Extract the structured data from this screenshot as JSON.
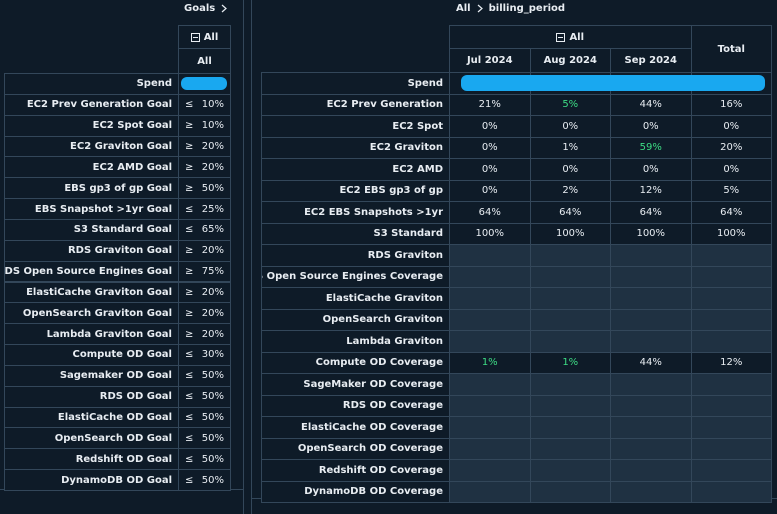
{
  "left": {
    "breadcrumb": "Goals",
    "column_group": "All",
    "column": "All",
    "spend_label": "Spend",
    "rows": [
      {
        "label": "EC2 Prev Generation Goal",
        "op": "≤",
        "value": "10%"
      },
      {
        "label": "EC2 Spot Goal",
        "op": "≥",
        "value": "10%"
      },
      {
        "label": "EC2 Graviton Goal",
        "op": "≥",
        "value": "20%"
      },
      {
        "label": "EC2 AMD Goal",
        "op": "≥",
        "value": "20%"
      },
      {
        "label": "EBS gp3 of gp Goal",
        "op": "≥",
        "value": "50%"
      },
      {
        "label": "EBS Snapshot >1yr Goal",
        "op": "≤",
        "value": "25%"
      },
      {
        "label": "S3 Standard Goal",
        "op": "≤",
        "value": "65%"
      },
      {
        "label": "RDS Graviton Goal",
        "op": "≥",
        "value": "20%"
      },
      {
        "label": "RDS Open Source Engines Goal",
        "op": "≥",
        "value": "75%"
      },
      {
        "label": "ElastiCache Graviton Goal",
        "op": "≥",
        "value": "20%"
      },
      {
        "label": "OpenSearch Graviton Goal",
        "op": "≥",
        "value": "20%"
      },
      {
        "label": "Lambda Graviton Goal",
        "op": "≥",
        "value": "20%"
      },
      {
        "label": "Compute OD Goal",
        "op": "≤",
        "value": "30%"
      },
      {
        "label": "Sagemaker OD Goal",
        "op": "≤",
        "value": "50%"
      },
      {
        "label": "RDS OD Goal",
        "op": "≤",
        "value": "50%"
      },
      {
        "label": "ElastiCache OD Goal",
        "op": "≤",
        "value": "50%"
      },
      {
        "label": "OpenSearch OD Goal",
        "op": "≤",
        "value": "50%"
      },
      {
        "label": "Redshift OD Goal",
        "op": "≤",
        "value": "50%"
      },
      {
        "label": "DynamoDB OD Goal",
        "op": "≤",
        "value": "50%"
      }
    ]
  },
  "right": {
    "breadcrumb": [
      "All",
      "billing_period"
    ],
    "column_group": "All",
    "columns": [
      "Jul 2024",
      "Aug 2024",
      "Sep 2024"
    ],
    "total": "Total",
    "spend_label": "Spend",
    "highlight_color": "#3ddc84",
    "rows": [
      {
        "label": "EC2 Prev Generation",
        "values": [
          "21%",
          "5%",
          "44%",
          "16%"
        ],
        "highlight": [
          1
        ]
      },
      {
        "label": "EC2 Spot",
        "values": [
          "0%",
          "0%",
          "0%",
          "0%"
        ],
        "highlight": []
      },
      {
        "label": "EC2 Graviton",
        "values": [
          "0%",
          "1%",
          "59%",
          "20%"
        ],
        "highlight": [
          2
        ]
      },
      {
        "label": "EC2 AMD",
        "values": [
          "0%",
          "0%",
          "0%",
          "0%"
        ],
        "highlight": []
      },
      {
        "label": "EC2 EBS gp3 of gp",
        "values": [
          "0%",
          "2%",
          "12%",
          "5%"
        ],
        "highlight": []
      },
      {
        "label": "EC2 EBS Snapshots >1yr",
        "values": [
          "64%",
          "64%",
          "64%",
          "64%"
        ],
        "highlight": []
      },
      {
        "label": "S3 Standard",
        "values": [
          "100%",
          "100%",
          "100%",
          "100%"
        ],
        "highlight": []
      },
      {
        "label": "RDS Graviton",
        "values": [
          null,
          null,
          null,
          null
        ],
        "highlight": []
      },
      {
        "label": "RDS Open Source Engines Coverage",
        "values": [
          null,
          null,
          null,
          null
        ],
        "highlight": []
      },
      {
        "label": "ElastiCache Graviton",
        "values": [
          null,
          null,
          null,
          null
        ],
        "highlight": []
      },
      {
        "label": "OpenSearch Graviton",
        "values": [
          null,
          null,
          null,
          null
        ],
        "highlight": []
      },
      {
        "label": "Lambda Graviton",
        "values": [
          null,
          null,
          null,
          null
        ],
        "highlight": []
      },
      {
        "label": "Compute OD Coverage",
        "values": [
          "1%",
          "1%",
          "44%",
          "12%"
        ],
        "highlight": [
          0,
          1
        ]
      },
      {
        "label": "SageMaker OD Coverage",
        "values": [
          null,
          null,
          null,
          null
        ],
        "highlight": []
      },
      {
        "label": "RDS OD Coverage",
        "values": [
          null,
          null,
          null,
          null
        ],
        "highlight": []
      },
      {
        "label": "ElastiCache OD Coverage",
        "values": [
          null,
          null,
          null,
          null
        ],
        "highlight": []
      },
      {
        "label": "OpenSearch OD Coverage",
        "values": [
          null,
          null,
          null,
          null
        ],
        "highlight": []
      },
      {
        "label": "Redshift OD Coverage",
        "values": [
          null,
          null,
          null,
          null
        ],
        "highlight": []
      },
      {
        "label": "DynamoDB OD Coverage",
        "values": [
          null,
          null,
          null,
          null
        ],
        "highlight": []
      }
    ]
  }
}
